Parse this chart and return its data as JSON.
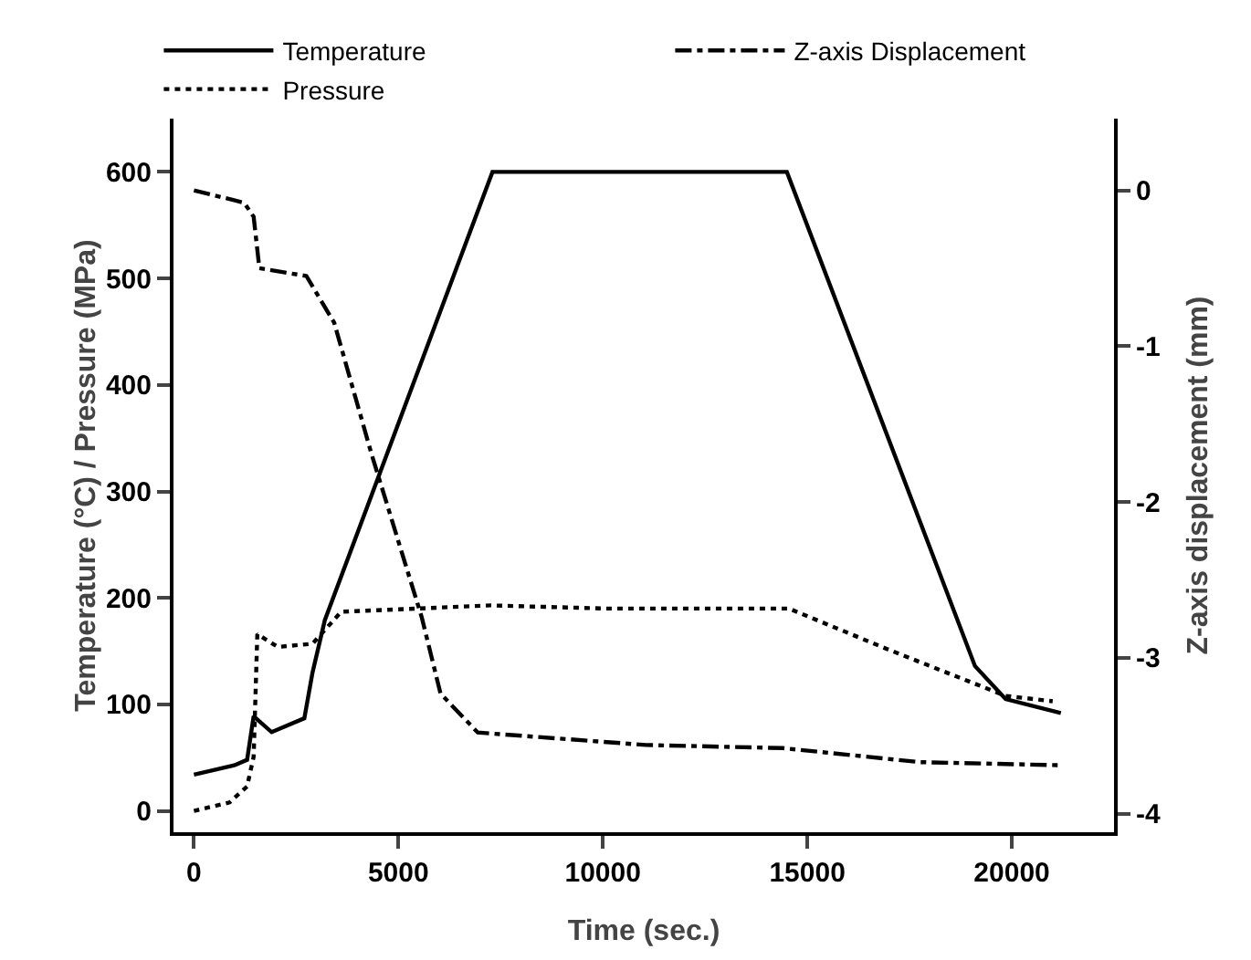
{
  "chart_data": {
    "type": "line",
    "xlabel": "Time (sec.)",
    "ylabel": "Temperature (°C) / Pressure (MPa)",
    "y2label": "Z-axis displacement (mm)",
    "xlim": [
      -500,
      22500
    ],
    "xticks": [
      0,
      5000,
      10000,
      15000,
      20000
    ],
    "ylim": [
      -20,
      650
    ],
    "yticks": [
      0,
      100,
      200,
      300,
      400,
      500,
      600
    ],
    "y2lim": [
      -4.12,
      0.46
    ],
    "y2ticks": [
      0,
      -1,
      -2,
      -3,
      -4
    ],
    "legend": "top",
    "grid": false,
    "marker": "none",
    "series": [
      {
        "name": "Temperature",
        "color": "#000000",
        "line_style": "solid",
        "x": [
          0,
          1000,
          1300,
          1460,
          1900,
          2700,
          2900,
          3200,
          7300,
          14500,
          19100,
          19850,
          21200
        ],
        "values": [
          34,
          43,
          48,
          89,
          74,
          87,
          130,
          179,
          600,
          600,
          136,
          105,
          92
        ]
      },
      {
        "name": "Z-axis Displacement",
        "color": "#000000",
        "line_style": "dashdot",
        "axis": "y2",
        "x": [
          0,
          1230,
          1460,
          1600,
          2750,
          3430,
          4340,
          5570,
          6030,
          6940,
          11050,
          14400,
          17750,
          21200
        ],
        "values": [
          0,
          -0.08,
          -0.17,
          -0.5,
          -0.55,
          -0.85,
          -1.69,
          -2.74,
          -3.23,
          -3.48,
          -3.56,
          -3.58,
          -3.67,
          -3.69
        ]
      },
      {
        "name": "Pressure",
        "color": "#000000",
        "line_style": "dotted",
        "x": [
          0,
          870,
          1300,
          1460,
          1550,
          2050,
          2900,
          3600,
          7250,
          10100,
          14550,
          16950,
          19850,
          21000
        ],
        "values": [
          0,
          8,
          23,
          51,
          166,
          154,
          157,
          187,
          193,
          190,
          190,
          152,
          108,
          103
        ]
      }
    ]
  }
}
